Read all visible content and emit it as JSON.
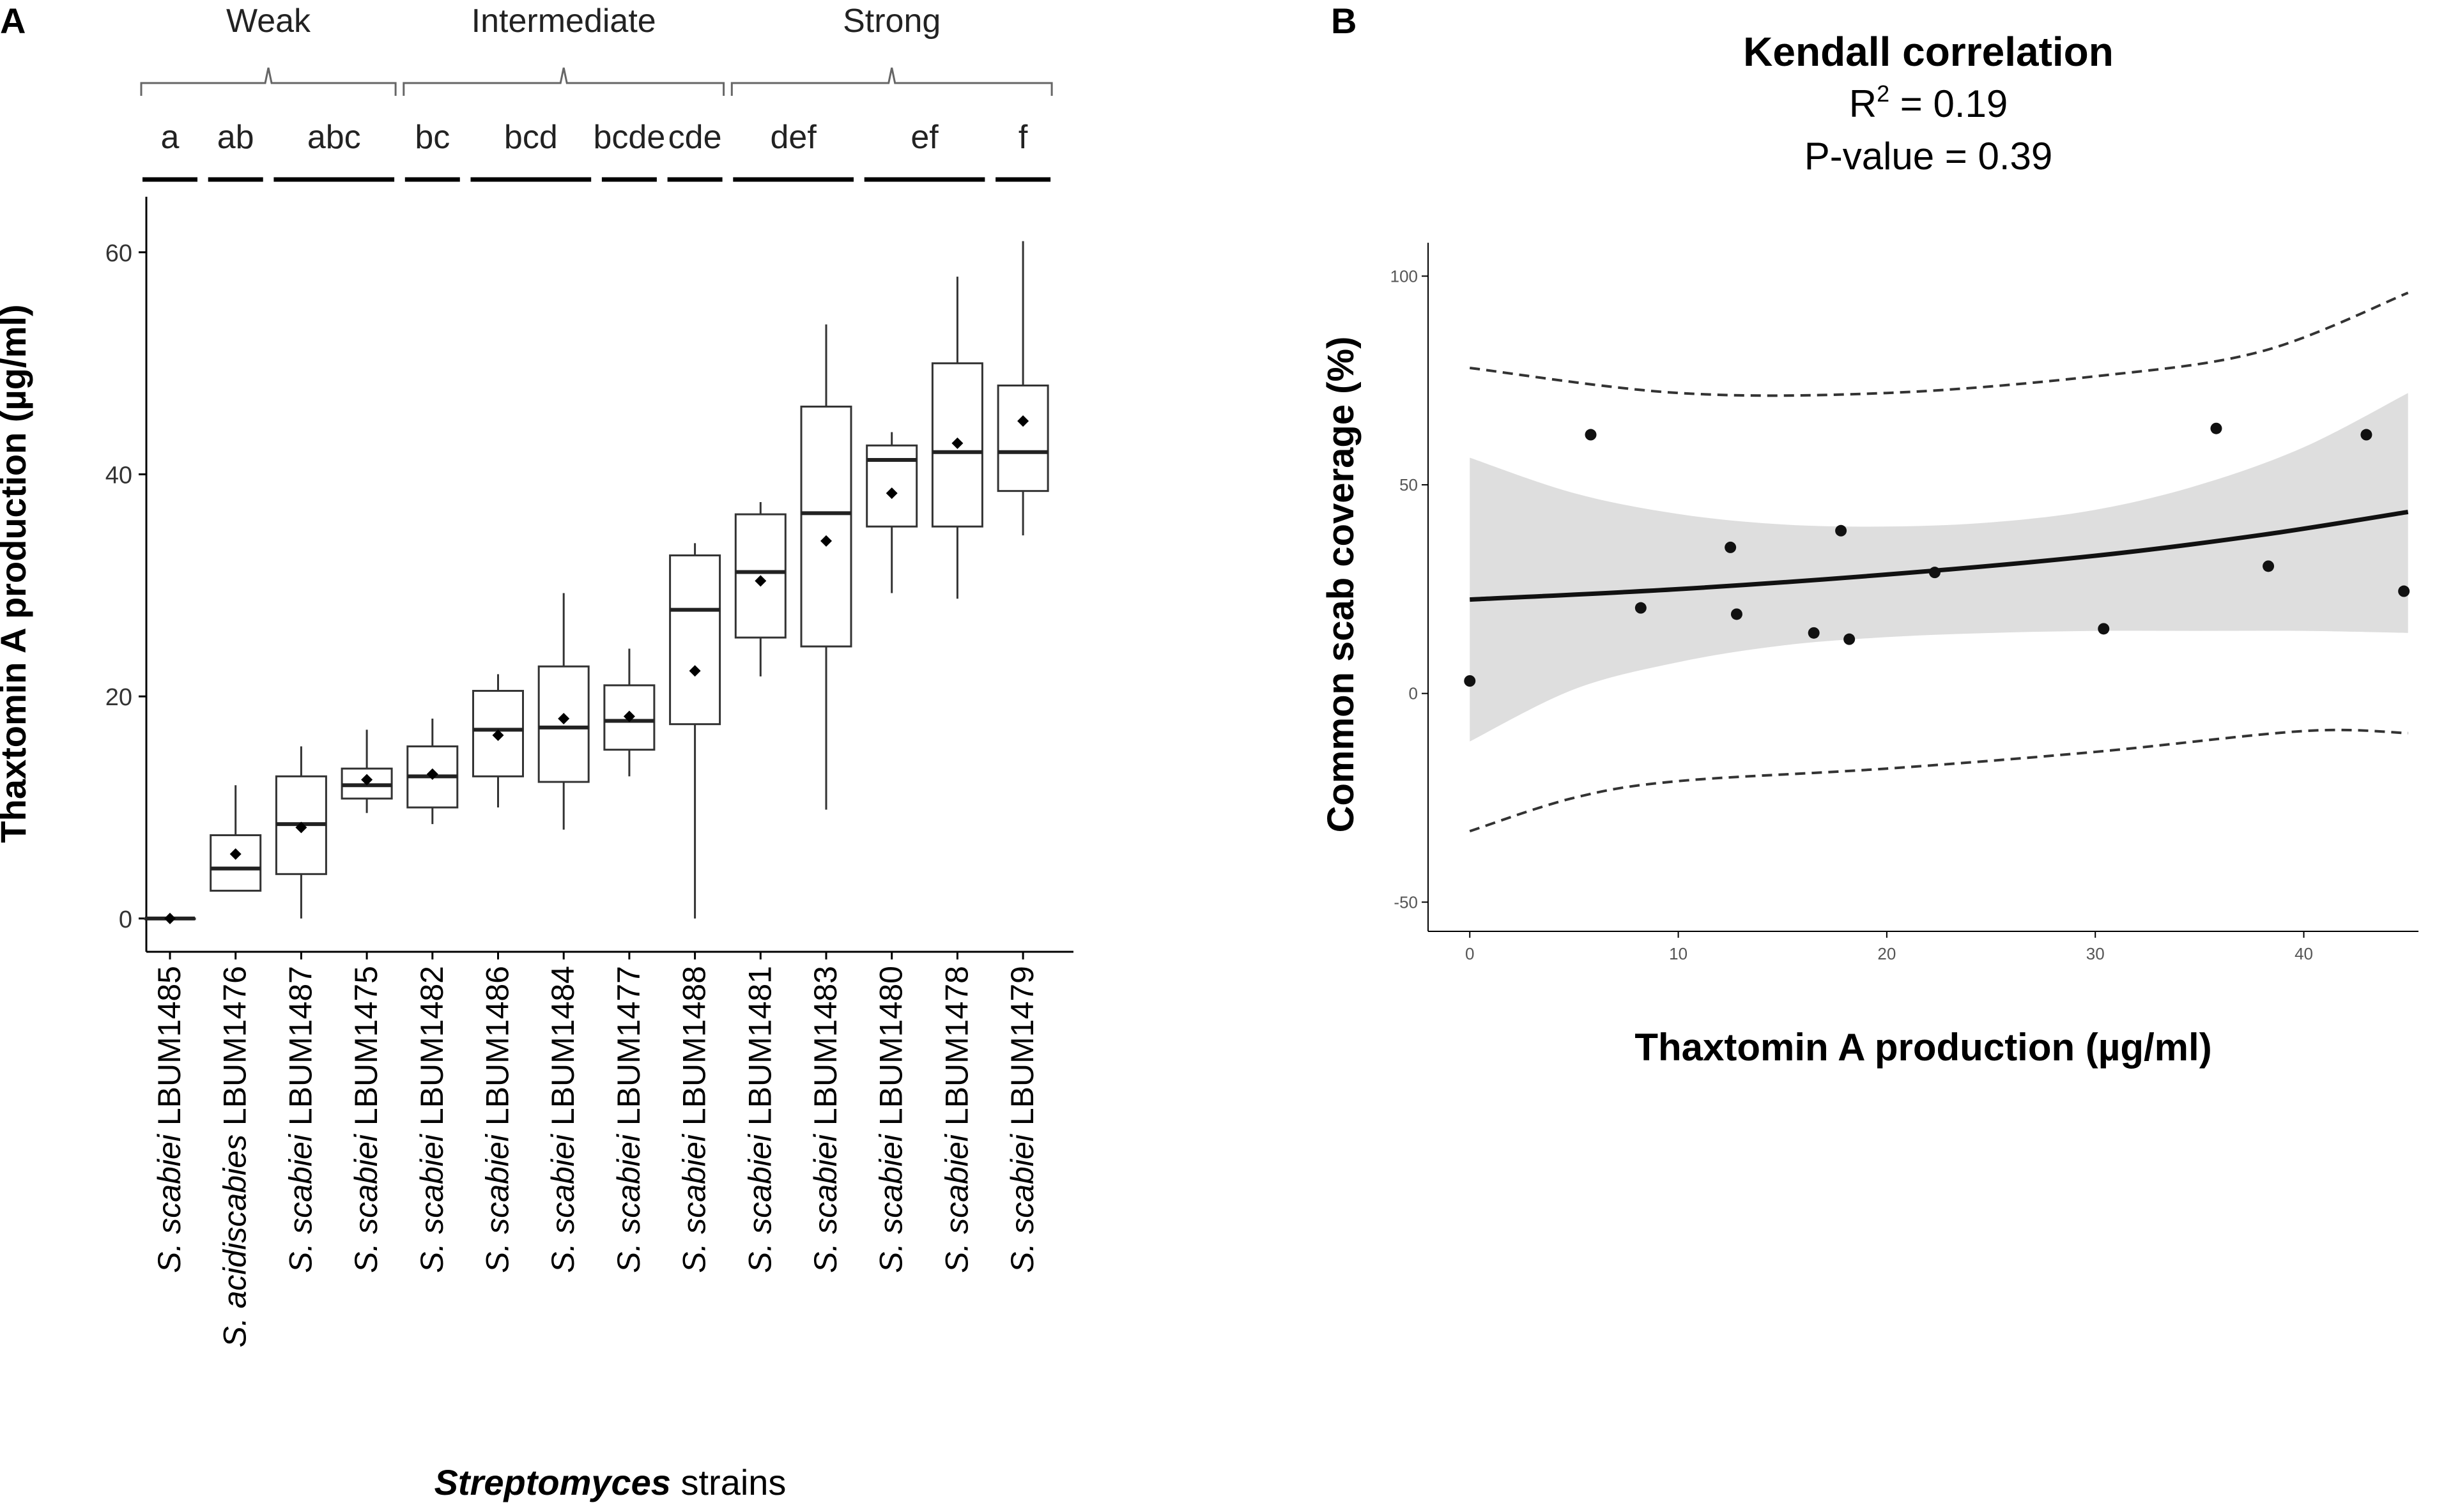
{
  "chart_data": [
    {
      "panel_label": "A",
      "type": "boxplot",
      "xlabel_italic": "Streptomyces",
      "xlabel_rest": " strains",
      "ylabel": "Thaxtomin A production (µg/ml)",
      "ylim": [
        -3,
        65
      ],
      "yticks": [
        0,
        20,
        40,
        60
      ],
      "groups": [
        {
          "label": "Weak",
          "first": 0,
          "last": 3
        },
        {
          "label": "Intermediate",
          "first": 4,
          "last": 8
        },
        {
          "label": "Strong",
          "first": 9,
          "last": 13
        }
      ],
      "letters": [
        {
          "label": "a",
          "first": 0,
          "last": 0
        },
        {
          "label": "ab",
          "first": 1,
          "last": 1
        },
        {
          "label": "abc",
          "first": 2,
          "last": 3
        },
        {
          "label": "bc",
          "first": 4,
          "last": 4
        },
        {
          "label": "bcd",
          "first": 5,
          "last": 6
        },
        {
          "label": "bcde",
          "first": 7,
          "last": 7
        },
        {
          "label": "cde",
          "first": 8,
          "last": 8
        },
        {
          "label": "def",
          "first": 9,
          "last": 10
        },
        {
          "label": "ef",
          "first": 11,
          "last": 12
        },
        {
          "label": "f",
          "first": 13,
          "last": 13
        }
      ],
      "strains": [
        {
          "species": "S. scabiei",
          "strain": "LBUM1485",
          "min": 0,
          "q1": 0,
          "median": 0,
          "q3": 0,
          "max": 0,
          "mean": 0
        },
        {
          "species": "S. acidiscabies",
          "strain": "LBUM1476",
          "min": 2.5,
          "q1": 2.5,
          "median": 4.5,
          "q3": 7.5,
          "max": 12,
          "mean": 5.8
        },
        {
          "species": "S. scabiei",
          "strain": "LBUM1487",
          "min": 0,
          "q1": 4,
          "median": 8.5,
          "q3": 12.8,
          "max": 15.5,
          "mean": 8.2
        },
        {
          "species": "S. scabiei",
          "strain": "LBUM1475",
          "min": 9.5,
          "q1": 10.8,
          "median": 12,
          "q3": 13.5,
          "max": 17,
          "mean": 12.5
        },
        {
          "species": "S. scabiei",
          "strain": "LBUM1482",
          "min": 8.5,
          "q1": 10,
          "median": 12.8,
          "q3": 15.5,
          "max": 18,
          "mean": 13
        },
        {
          "species": "S. scabiei",
          "strain": "LBUM1486",
          "min": 10,
          "q1": 12.8,
          "median": 17,
          "q3": 20.5,
          "max": 22,
          "mean": 16.5
        },
        {
          "species": "S. scabiei",
          "strain": "LBUM1484",
          "min": 8,
          "q1": 12.3,
          "median": 17.2,
          "q3": 22.7,
          "max": 29.3,
          "mean": 18
        },
        {
          "species": "S. scabiei",
          "strain": "LBUM1477",
          "min": 12.8,
          "q1": 15.2,
          "median": 17.8,
          "q3": 21,
          "max": 24.3,
          "mean": 18.2
        },
        {
          "species": "S. scabiei",
          "strain": "LBUM1488",
          "min": 0,
          "q1": 17.5,
          "median": 27.8,
          "q3": 32.7,
          "max": 33.8,
          "mean": 22.3
        },
        {
          "species": "S. scabiei",
          "strain": "LBUM1481",
          "min": 21.8,
          "q1": 25.3,
          "median": 31.2,
          "q3": 36.4,
          "max": 37.5,
          "mean": 30.4
        },
        {
          "species": "S. scabiei",
          "strain": "LBUM1483",
          "min": 9.8,
          "q1": 24.5,
          "median": 36.5,
          "q3": 46.1,
          "max": 53.5,
          "mean": 34
        },
        {
          "species": "S. scabiei",
          "strain": "LBUM1480",
          "min": 29.3,
          "q1": 35.3,
          "median": 41.3,
          "q3": 42.6,
          "max": 43.8,
          "mean": 38.3
        },
        {
          "species": "S. scabiei",
          "strain": "LBUM1478",
          "min": 28.8,
          "q1": 35.3,
          "median": 42,
          "q3": 50,
          "max": 57.8,
          "mean": 42.8
        },
        {
          "species": "S. scabiei",
          "strain": "LBUM1479",
          "min": 34.5,
          "q1": 38.5,
          "median": 42,
          "q3": 48,
          "max": 61,
          "mean": 44.8
        }
      ]
    },
    {
      "panel_label": "B",
      "type": "scatter",
      "title": "Kendall correlation",
      "r2_label": "R",
      "r2_sup": "2",
      "r2_value": " = 0.19",
      "pvalue_label": "P-value = 0.39",
      "xlabel": "Thaxtomin A production (µg/ml)",
      "ylabel": "Common scab coverage (%)",
      "xlim": [
        -2,
        45.5
      ],
      "ylim": [
        -57,
        108
      ],
      "xticks": [
        0,
        10,
        20,
        30,
        40
      ],
      "yticks": [
        -50,
        0,
        50,
        100
      ],
      "points": [
        {
          "x": 0,
          "y": 3
        },
        {
          "x": 5.8,
          "y": 62
        },
        {
          "x": 8.2,
          "y": 20.5
        },
        {
          "x": 12.5,
          "y": 35
        },
        {
          "x": 12.8,
          "y": 19
        },
        {
          "x": 16.5,
          "y": 14.5
        },
        {
          "x": 17.8,
          "y": 39
        },
        {
          "x": 18.2,
          "y": 13
        },
        {
          "x": 22.3,
          "y": 29
        },
        {
          "x": 30.4,
          "y": 15.5
        },
        {
          "x": 35.8,
          "y": 63.5
        },
        {
          "x": 38.3,
          "y": 30.5
        },
        {
          "x": 43,
          "y": 62
        },
        {
          "x": 44.8,
          "y": 24.5
        }
      ],
      "fit_line": [
        {
          "x": 0,
          "y": 22.5
        },
        {
          "x": 10,
          "y": 25
        },
        {
          "x": 20,
          "y": 28.5
        },
        {
          "x": 30,
          "y": 33
        },
        {
          "x": 38,
          "y": 38
        },
        {
          "x": 45,
          "y": 43.5
        }
      ],
      "ci_upper": [
        {
          "x": 0,
          "y": 56.5
        },
        {
          "x": 5,
          "y": 48
        },
        {
          "x": 10,
          "y": 43
        },
        {
          "x": 15,
          "y": 40.5
        },
        {
          "x": 20,
          "y": 40
        },
        {
          "x": 25,
          "y": 41
        },
        {
          "x": 30,
          "y": 44
        },
        {
          "x": 35,
          "y": 50
        },
        {
          "x": 40,
          "y": 59
        },
        {
          "x": 45,
          "y": 72
        }
      ],
      "ci_lower": [
        {
          "x": 0,
          "y": -11.5
        },
        {
          "x": 5,
          "y": 1
        },
        {
          "x": 10,
          "y": 7.5
        },
        {
          "x": 15,
          "y": 11.5
        },
        {
          "x": 20,
          "y": 13.5
        },
        {
          "x": 25,
          "y": 14.5
        },
        {
          "x": 30,
          "y": 15
        },
        {
          "x": 35,
          "y": 15
        },
        {
          "x": 40,
          "y": 15
        },
        {
          "x": 45,
          "y": 14.5
        }
      ],
      "pred_upper": [
        {
          "x": 0,
          "y": 78
        },
        {
          "x": 10,
          "y": 72
        },
        {
          "x": 20,
          "y": 72
        },
        {
          "x": 30,
          "y": 76
        },
        {
          "x": 38,
          "y": 82
        },
        {
          "x": 45,
          "y": 96
        }
      ],
      "pred_lower": [
        {
          "x": 0,
          "y": -33
        },
        {
          "x": 5,
          "y": -25
        },
        {
          "x": 10,
          "y": -21
        },
        {
          "x": 20,
          "y": -18
        },
        {
          "x": 30,
          "y": -14
        },
        {
          "x": 40,
          "y": -9
        },
        {
          "x": 45,
          "y": -9.5
        }
      ]
    }
  ]
}
